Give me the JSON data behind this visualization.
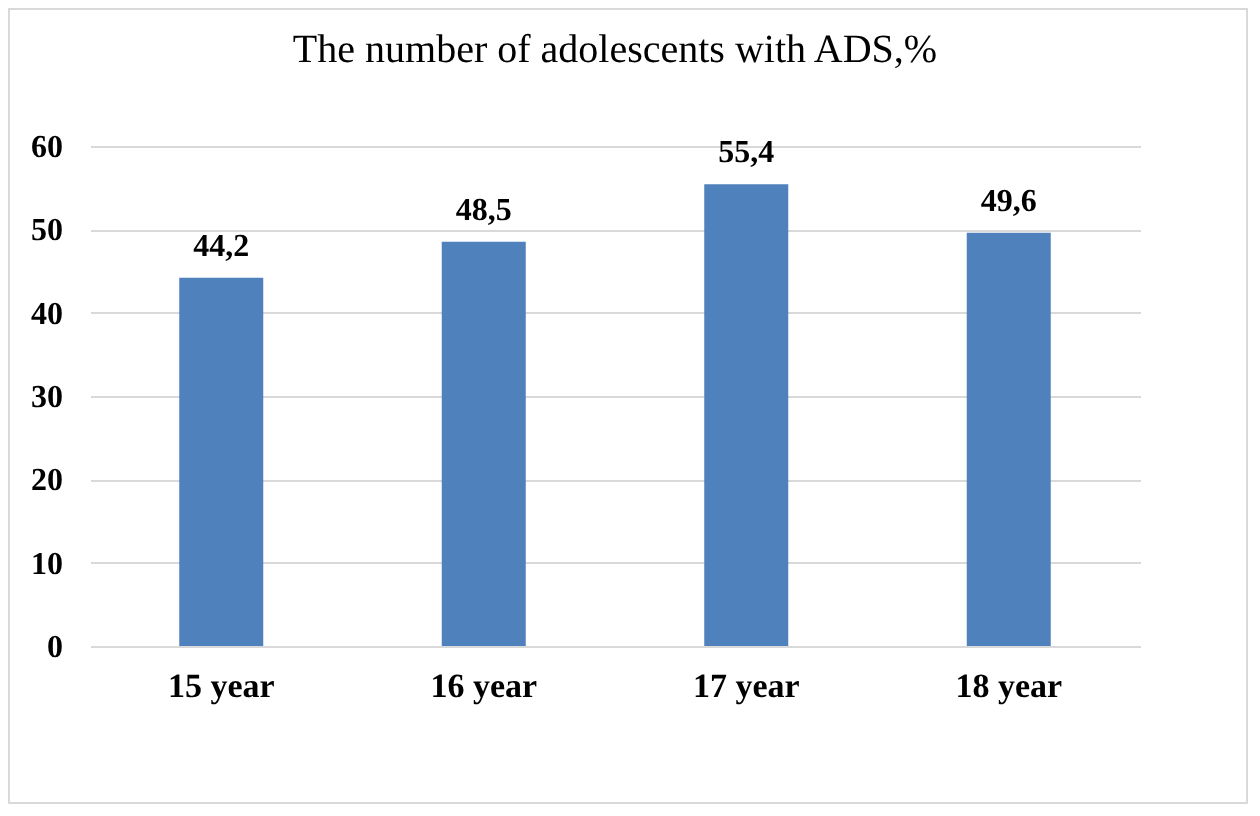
{
  "chart_data": {
    "type": "bar",
    "title": "The number of adolescents with ADS,%",
    "categories": [
      "15 year",
      "16 year",
      "17 year",
      "18 year"
    ],
    "values": [
      44.2,
      48.5,
      55.4,
      49.6
    ],
    "value_labels": [
      "44,2",
      "48,5",
      "55,4",
      "49,6"
    ],
    "color": "#4f81bd",
    "ylim": [
      0,
      60
    ],
    "yticks": [
      0,
      10,
      20,
      30,
      40,
      50,
      60
    ],
    "grid": "y"
  }
}
